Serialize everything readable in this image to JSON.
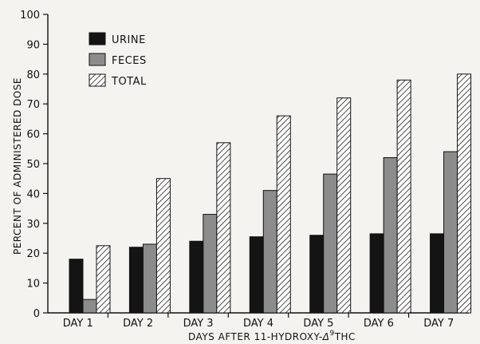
{
  "chart_data": {
    "type": "bar",
    "xlabel_prefix": "DAYS AFTER 11-HYDROXY-",
    "xlabel_delta": "Δ",
    "xlabel_super": "9",
    "xlabel_suffix": "THC",
    "ylabel": "PERCENT OF ADMINISTERED DOSE",
    "ylim": [
      0,
      100
    ],
    "yticks": [
      "0",
      "10",
      "20",
      "30",
      "40",
      "50",
      "60",
      "70",
      "80",
      "90",
      "100"
    ],
    "categories": [
      "DAY 1",
      "DAY 2",
      "DAY 3",
      "DAY 4",
      "DAY 5",
      "DAY 6",
      "DAY 7"
    ],
    "legend_position": "top-left",
    "grid": false,
    "series": [
      {
        "name": "URINE",
        "fill": "solid-black",
        "values": [
          18,
          22,
          24,
          25.5,
          26,
          26.5,
          26.5
        ]
      },
      {
        "name": "FECES",
        "fill": "gray",
        "values": [
          4.5,
          23,
          33,
          41,
          46.5,
          52,
          54
        ]
      },
      {
        "name": "TOTAL",
        "fill": "hatched",
        "values": [
          22.5,
          45,
          57,
          66,
          72,
          78,
          80
        ]
      }
    ]
  }
}
